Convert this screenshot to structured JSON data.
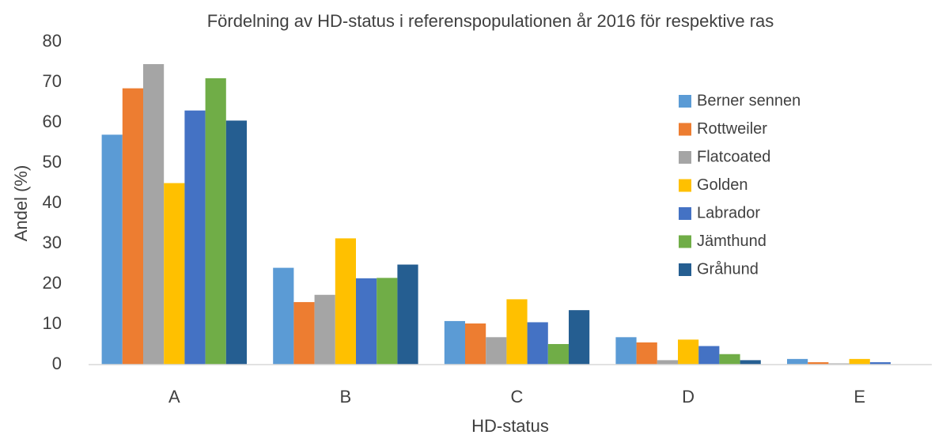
{
  "chart_data": {
    "type": "bar",
    "title": "Fördelning av HD-status i referenspopulationen år 2016 för respektive ras",
    "x_label": "HD-status",
    "y_label": "Andel (%)",
    "categories": [
      "A",
      "B",
      "C",
      "D",
      "E"
    ],
    "series": [
      {
        "name": "Berner sennen",
        "color": "#5b9bd5",
        "values": [
          57,
          24,
          10.8,
          6.8,
          1.4
        ]
      },
      {
        "name": "Rottweiler",
        "color": "#ed7d31",
        "values": [
          68.5,
          15.5,
          10.2,
          5.5,
          0.6
        ]
      },
      {
        "name": "Flatcoated",
        "color": "#a5a5a5",
        "values": [
          74.5,
          17.3,
          6.8,
          1.1,
          0.3
        ]
      },
      {
        "name": "Golden",
        "color": "#ffc000",
        "values": [
          45,
          31.3,
          16.2,
          6.2,
          1.4
        ]
      },
      {
        "name": "Labrador",
        "color": "#4472c4",
        "values": [
          63,
          21.4,
          10.5,
          4.6,
          0.6
        ]
      },
      {
        "name": "Jämthund",
        "color": "#70ad47",
        "values": [
          71,
          21.5,
          5.1,
          2.6,
          0
        ]
      },
      {
        "name": "Gråhund",
        "color": "#255e91",
        "values": [
          60.5,
          24.8,
          13.5,
          1.1,
          0
        ]
      }
    ],
    "ylim": [
      0,
      80
    ],
    "yticks": [
      0,
      10,
      20,
      30,
      40,
      50,
      60,
      70,
      80
    ],
    "legend": "right"
  }
}
